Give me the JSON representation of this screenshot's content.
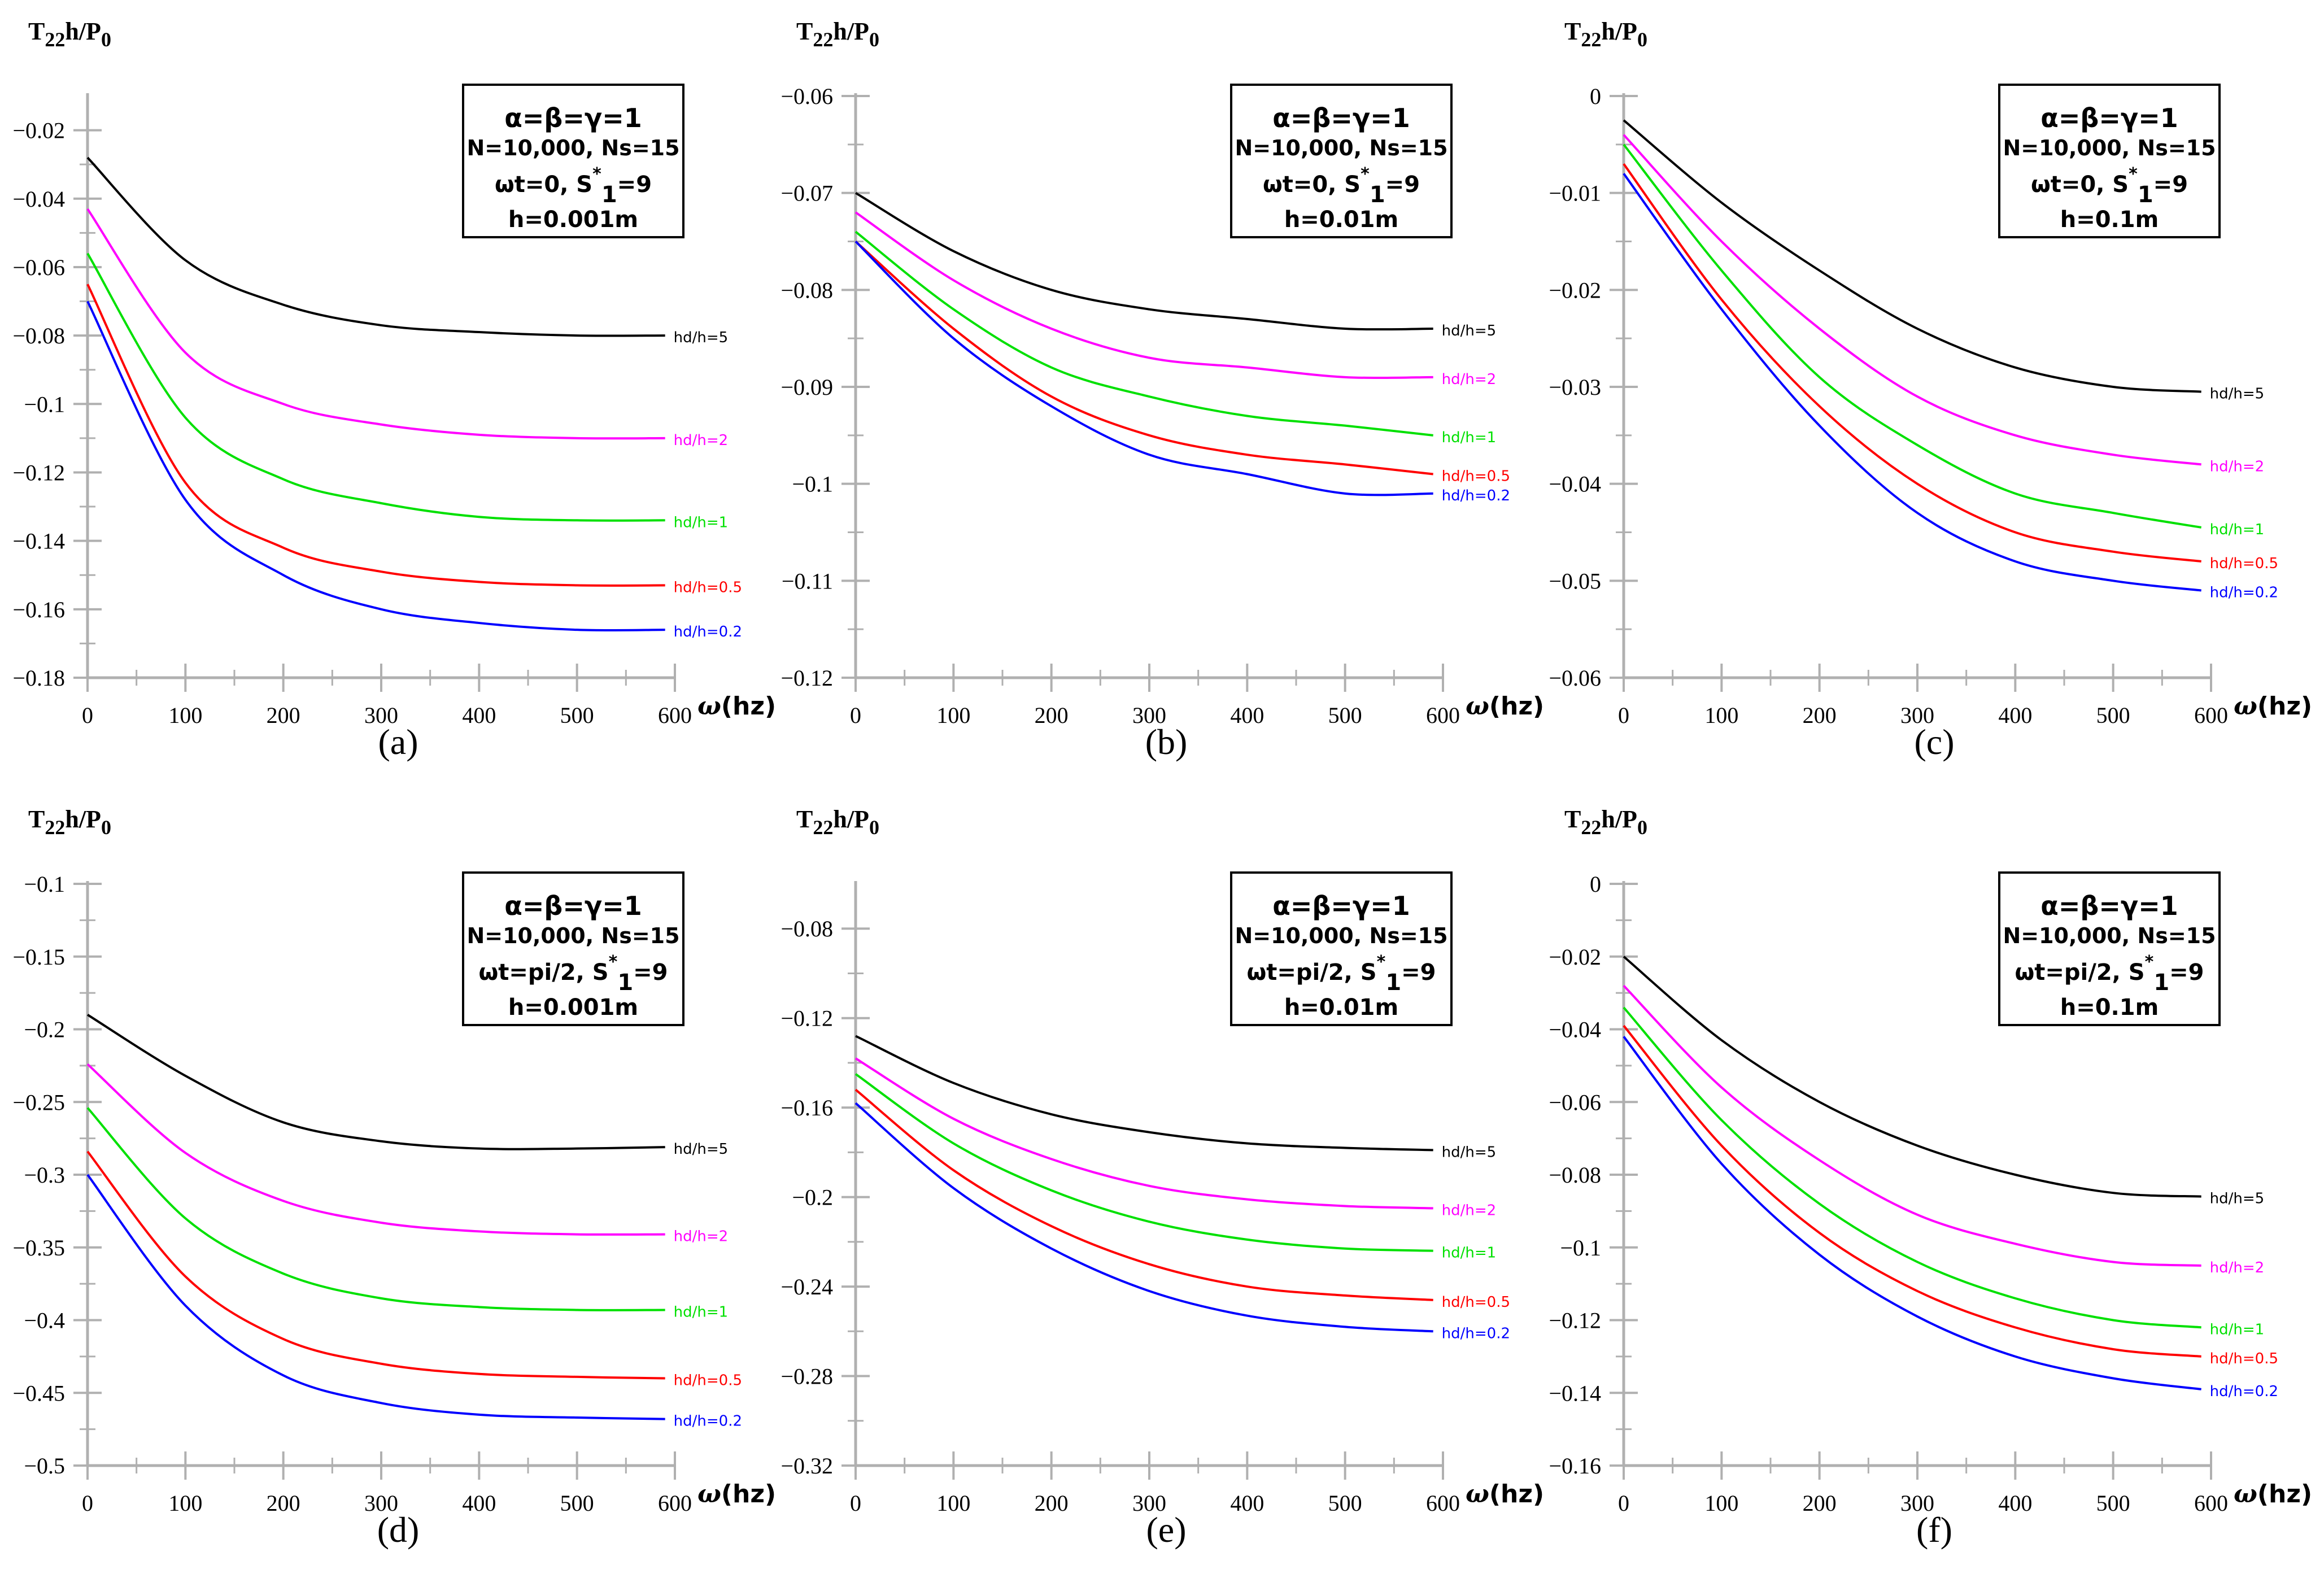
{
  "colors": {
    "hd/h=5": "#000000",
    "hd/h=2": "#ff00ff",
    "hd/h=1": "#00e000",
    "hd/h=0.5": "#ff0000",
    "hd/h=0.2": "#0000ff",
    "axis": "#b0b0b0"
  },
  "chart_data": [
    {
      "type": "line",
      "panel": "(a)",
      "ylabel": {
        "t": "T",
        "sub1": "22",
        "mid": "h/P",
        "sub2": "0"
      },
      "xlabel": {
        "sym": "ω",
        "unit": "(hz)"
      },
      "xlim": [
        0,
        600
      ],
      "ylim": [
        -0.18,
        -0.01
      ],
      "xticks": [
        0,
        100,
        200,
        300,
        400,
        500,
        600
      ],
      "yticks": [
        -0.02,
        -0.04,
        -0.06,
        -0.08,
        -0.1,
        -0.12,
        -0.14,
        -0.16,
        -0.18
      ],
      "legend": {
        "line1": "α=β=γ=1",
        "line2": "N=10,000, Ns=15",
        "line3": {
          "pre": "ωt=0, S",
          "sup": "*",
          "sub": "1",
          "post": "=9"
        },
        "line4": "h=0.001m"
      },
      "x": [
        0,
        100,
        200,
        300,
        400,
        500,
        590
      ],
      "series": [
        {
          "name": "hd/h=5",
          "values": [
            -0.028,
            -0.058,
            -0.071,
            -0.077,
            -0.079,
            -0.08,
            -0.08
          ]
        },
        {
          "name": "hd/h=2",
          "values": [
            -0.043,
            -0.085,
            -0.1,
            -0.106,
            -0.109,
            -0.11,
            -0.11
          ]
        },
        {
          "name": "hd/h=1",
          "values": [
            -0.056,
            -0.104,
            -0.122,
            -0.129,
            -0.133,
            -0.134,
            -0.134
          ]
        },
        {
          "name": "hd/h=0.5",
          "values": [
            -0.065,
            -0.123,
            -0.142,
            -0.149,
            -0.152,
            -0.153,
            -0.153
          ]
        },
        {
          "name": "hd/h=0.2",
          "values": [
            -0.07,
            -0.128,
            -0.15,
            -0.16,
            -0.164,
            -0.166,
            -0.166
          ]
        }
      ]
    },
    {
      "type": "line",
      "panel": "(b)",
      "ylabel": {
        "t": "T",
        "sub1": "22",
        "mid": "h/P",
        "sub2": "0"
      },
      "xlabel": {
        "sym": "ω",
        "unit": "(hz)"
      },
      "xlim": [
        0,
        600
      ],
      "ylim": [
        -0.12,
        -0.06
      ],
      "xticks": [
        0,
        100,
        200,
        300,
        400,
        500,
        600
      ],
      "yticks": [
        -0.06,
        -0.07,
        -0.08,
        -0.09,
        -0.1,
        -0.11,
        -0.12
      ],
      "legend": {
        "line1": "α=β=γ=1",
        "line2": "N=10,000, Ns=15",
        "line3": {
          "pre": "ωt=0, S",
          "sup": "*",
          "sub": "1",
          "post": "=9"
        },
        "line4": "h=0.01m"
      },
      "x": [
        0,
        100,
        200,
        300,
        400,
        500,
        590
      ],
      "series": [
        {
          "name": "hd/h=5",
          "values": [
            -0.07,
            -0.076,
            -0.08,
            -0.082,
            -0.083,
            -0.084,
            -0.084
          ]
        },
        {
          "name": "hd/h=2",
          "values": [
            -0.072,
            -0.079,
            -0.084,
            -0.087,
            -0.088,
            -0.089,
            -0.089
          ]
        },
        {
          "name": "hd/h=1",
          "values": [
            -0.074,
            -0.082,
            -0.088,
            -0.091,
            -0.093,
            -0.094,
            -0.095
          ]
        },
        {
          "name": "hd/h=0.5",
          "values": [
            -0.075,
            -0.084,
            -0.091,
            -0.095,
            -0.097,
            -0.098,
            -0.099
          ]
        },
        {
          "name": "hd/h=0.2",
          "values": [
            -0.075,
            -0.085,
            -0.092,
            -0.097,
            -0.099,
            -0.101,
            -0.101
          ]
        }
      ]
    },
    {
      "type": "line",
      "panel": "(c)",
      "ylabel": {
        "t": "T",
        "sub1": "22",
        "mid": "h/P",
        "sub2": "0"
      },
      "xlabel": {
        "sym": "ω",
        "unit": "(hz)"
      },
      "xlim": [
        0,
        600
      ],
      "ylim": [
        -0.06,
        0
      ],
      "xticks": [
        0,
        100,
        200,
        300,
        400,
        500,
        600
      ],
      "yticks": [
        0,
        -0.01,
        -0.02,
        -0.03,
        -0.04,
        -0.05,
        -0.06
      ],
      "legend": {
        "line1": "α=β=γ=1",
        "line2": "N=10,000, Ns=15",
        "line3": {
          "pre": "ωt=0, S",
          "sup": "*",
          "sub": "1",
          "post": "=9"
        },
        "line4": "h=0.1m"
      },
      "x": [
        0,
        100,
        200,
        300,
        400,
        500,
        590
      ],
      "series": [
        {
          "name": "hd/h=5",
          "values": [
            -0.0025,
            -0.011,
            -0.018,
            -0.024,
            -0.028,
            -0.03,
            -0.0305
          ]
        },
        {
          "name": "hd/h=2",
          "values": [
            -0.004,
            -0.015,
            -0.024,
            -0.031,
            -0.035,
            -0.037,
            -0.038
          ]
        },
        {
          "name": "hd/h=1",
          "values": [
            -0.005,
            -0.018,
            -0.029,
            -0.036,
            -0.041,
            -0.043,
            -0.0445
          ]
        },
        {
          "name": "hd/h=0.5",
          "values": [
            -0.007,
            -0.021,
            -0.032,
            -0.04,
            -0.045,
            -0.047,
            -0.048
          ]
        },
        {
          "name": "hd/h=0.2",
          "values": [
            -0.008,
            -0.022,
            -0.034,
            -0.043,
            -0.048,
            -0.05,
            -0.051
          ]
        }
      ]
    },
    {
      "type": "line",
      "panel": "(d)",
      "ylabel": {
        "t": "T",
        "sub1": "22",
        "mid": "h/P",
        "sub2": "0"
      },
      "xlabel": {
        "sym": "ω",
        "unit": "(hz)"
      },
      "xlim": [
        0,
        600
      ],
      "ylim": [
        -0.5,
        -0.1
      ],
      "xticks": [
        0,
        100,
        200,
        300,
        400,
        500,
        600
      ],
      "yticks": [
        -0.1,
        -0.15,
        -0.2,
        -0.25,
        -0.3,
        -0.35,
        -0.4,
        -0.45,
        -0.5
      ],
      "legend": {
        "line1": "α=β=γ=1",
        "line2": "N=10,000, Ns=15",
        "line3": {
          "pre": "ωt=pi/2, S",
          "sup": "*",
          "sub": "1",
          "post": "=9"
        },
        "line4": "h=0.001m"
      },
      "x": [
        0,
        100,
        200,
        300,
        400,
        500,
        590
      ],
      "series": [
        {
          "name": "hd/h=5",
          "values": [
            -0.19,
            -0.232,
            -0.264,
            -0.277,
            -0.282,
            -0.282,
            -0.281
          ]
        },
        {
          "name": "hd/h=2",
          "values": [
            -0.224,
            -0.285,
            -0.318,
            -0.333,
            -0.339,
            -0.341,
            -0.341
          ]
        },
        {
          "name": "hd/h=1",
          "values": [
            -0.254,
            -0.33,
            -0.368,
            -0.385,
            -0.391,
            -0.393,
            -0.393
          ]
        },
        {
          "name": "hd/h=0.5",
          "values": [
            -0.284,
            -0.37,
            -0.413,
            -0.43,
            -0.437,
            -0.439,
            -0.44
          ]
        },
        {
          "name": "hd/h=0.2",
          "values": [
            -0.3,
            -0.39,
            -0.438,
            -0.457,
            -0.465,
            -0.467,
            -0.468
          ]
        }
      ]
    },
    {
      "type": "line",
      "panel": "(e)",
      "ylabel": {
        "t": "T",
        "sub1": "22",
        "mid": "h/P",
        "sub2": "0"
      },
      "xlabel": {
        "sym": "ω",
        "unit": "(hz)"
      },
      "xlim": [
        0,
        600
      ],
      "ylim": [
        -0.32,
        -0.06
      ],
      "xticks": [
        0,
        100,
        200,
        300,
        400,
        500,
        600
      ],
      "yticks": [
        -0.08,
        -0.12,
        -0.16,
        -0.2,
        -0.24,
        -0.28,
        -0.32
      ],
      "legend": {
        "line1": "α=β=γ=1",
        "line2": "N=10,000, Ns=15",
        "line3": {
          "pre": "ωt=pi/2, S",
          "sup": "*",
          "sub": "1",
          "post": "=9"
        },
        "line4": "h=0.01m"
      },
      "x": [
        0,
        100,
        200,
        300,
        400,
        500,
        590
      ],
      "series": [
        {
          "name": "hd/h=5",
          "values": [
            -0.128,
            -0.149,
            -0.163,
            -0.171,
            -0.176,
            -0.178,
            -0.179
          ]
        },
        {
          "name": "hd/h=2",
          "values": [
            -0.138,
            -0.165,
            -0.183,
            -0.195,
            -0.201,
            -0.204,
            -0.205
          ]
        },
        {
          "name": "hd/h=1",
          "values": [
            -0.145,
            -0.176,
            -0.197,
            -0.211,
            -0.219,
            -0.223,
            -0.224
          ]
        },
        {
          "name": "hd/h=0.5",
          "values": [
            -0.152,
            -0.188,
            -0.213,
            -0.23,
            -0.24,
            -0.244,
            -0.246
          ]
        },
        {
          "name": "hd/h=0.2",
          "values": [
            -0.158,
            -0.196,
            -0.223,
            -0.242,
            -0.253,
            -0.258,
            -0.26
          ]
        }
      ]
    },
    {
      "type": "line",
      "panel": "(f)",
      "ylabel": {
        "t": "T",
        "sub1": "22",
        "mid": "h/P",
        "sub2": "0"
      },
      "xlabel": {
        "sym": "ω",
        "unit": "(hz)"
      },
      "xlim": [
        0,
        600
      ],
      "ylim": [
        -0.16,
        0
      ],
      "xticks": [
        0,
        100,
        200,
        300,
        400,
        500,
        600
      ],
      "yticks": [
        0,
        -0.02,
        -0.04,
        -0.06,
        -0.08,
        -0.1,
        -0.12,
        -0.14,
        -0.16
      ],
      "legend": {
        "line1": "α=β=γ=1",
        "line2": "N=10,000, Ns=15",
        "line3": {
          "pre": "ωt=pi/2, S",
          "sup": "*",
          "sub": "1",
          "post": "=9"
        },
        "line4": "h=0.1m"
      },
      "x": [
        0,
        100,
        200,
        300,
        400,
        500,
        590
      ],
      "series": [
        {
          "name": "hd/h=5",
          "values": [
            -0.02,
            -0.043,
            -0.06,
            -0.072,
            -0.08,
            -0.085,
            -0.086
          ]
        },
        {
          "name": "hd/h=2",
          "values": [
            -0.028,
            -0.056,
            -0.076,
            -0.091,
            -0.099,
            -0.104,
            -0.105
          ]
        },
        {
          "name": "hd/h=1",
          "values": [
            -0.034,
            -0.065,
            -0.088,
            -0.104,
            -0.114,
            -0.12,
            -0.122
          ]
        },
        {
          "name": "hd/h=0.5",
          "values": [
            -0.039,
            -0.072,
            -0.096,
            -0.112,
            -0.122,
            -0.128,
            -0.13
          ]
        },
        {
          "name": "hd/h=0.2",
          "values": [
            -0.042,
            -0.077,
            -0.102,
            -0.119,
            -0.13,
            -0.136,
            -0.139
          ]
        }
      ]
    }
  ]
}
